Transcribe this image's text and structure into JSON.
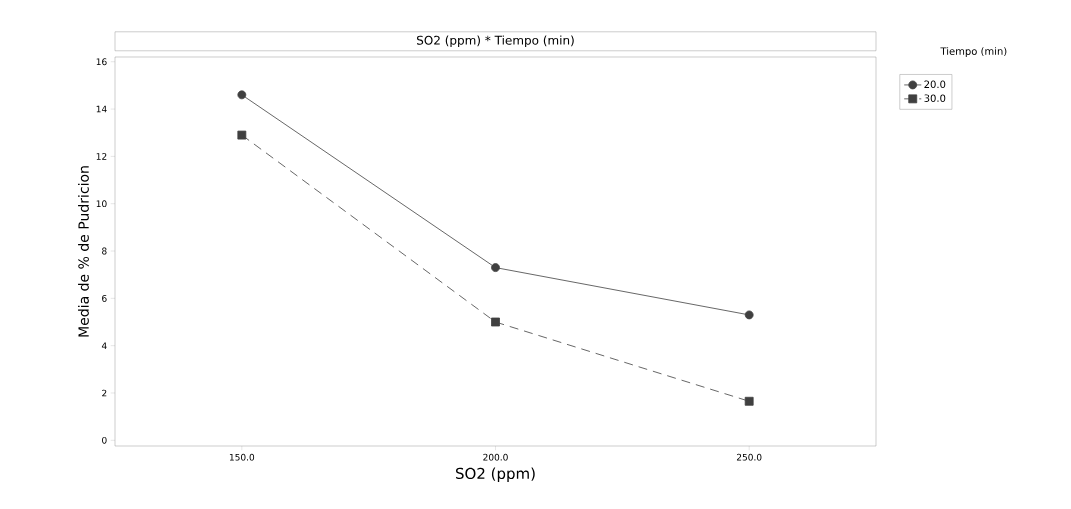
{
  "chart_data": {
    "type": "line",
    "title": "SO2 (ppm) * Tiempo (min)",
    "xlabel": "SO2 (ppm)",
    "ylabel": "Media de % de Pudricion",
    "legend_title": "Tiempo (min)",
    "x": [
      150,
      200,
      250
    ],
    "series": [
      {
        "name": "20.0",
        "color": "#404040",
        "values": [
          14.6,
          7.3,
          5.3
        ],
        "marker": "circle",
        "line_style": "solid"
      },
      {
        "name": "30.0",
        "color": "#404040",
        "values": [
          12.9,
          5.0,
          1.65
        ],
        "marker": "square",
        "line_style": "dashed"
      }
    ],
    "xlim": [
      125,
      275
    ],
    "ylim": [
      -0.24,
      16.2
    ],
    "xticks": [
      {
        "value": 150,
        "label": "150.0"
      },
      {
        "value": 200,
        "label": "200.0"
      },
      {
        "value": 250,
        "label": "250.0"
      }
    ],
    "yticks": [
      0,
      2,
      4,
      6,
      8,
      10,
      12,
      14,
      16
    ],
    "grid": false,
    "legend": "top right"
  }
}
